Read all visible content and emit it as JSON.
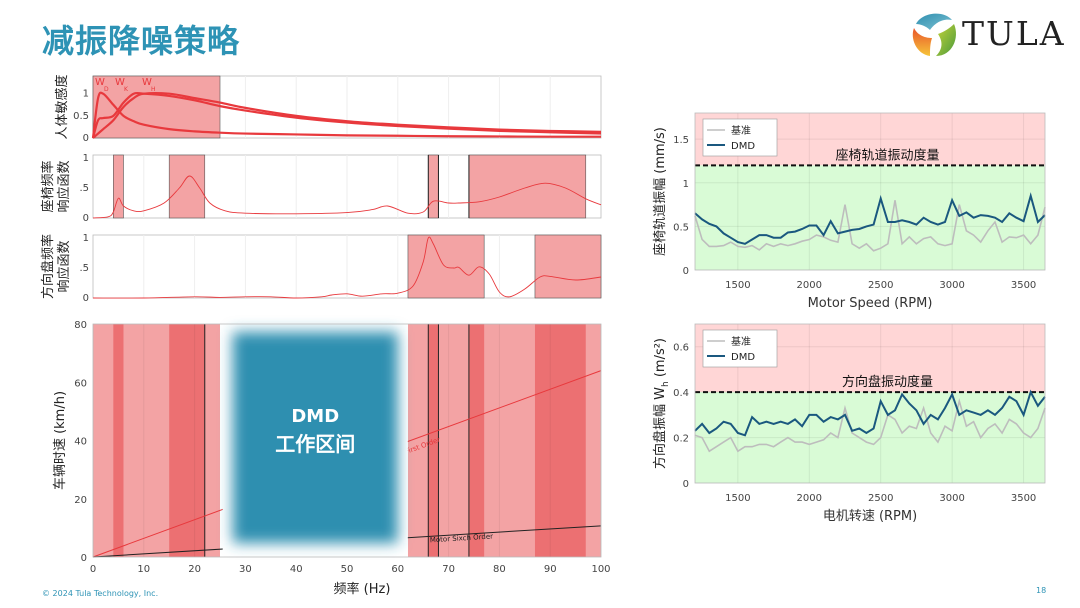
{
  "slide": {
    "title": "减振降噪策略",
    "footer": "© 2024 Tula Technology, Inc.",
    "page_number": "18",
    "logo_text": "TULA"
  },
  "colors": {
    "title": "#2e93b5",
    "band_light": "#f3a3a4",
    "band_dark": "#ec7072",
    "curve": "#e8393d",
    "dmd": "#2f8fb0",
    "dmd_line": "#1a587f",
    "baseline_line": "#bdbdbd",
    "zone_red": "#ffd6d6",
    "zone_green": "#d9fbd6"
  },
  "chart_data": [
    {
      "type": "line",
      "id": "sensitivity",
      "ylabel": "人体敏感度",
      "xlim": [
        0,
        100
      ],
      "ylim": [
        0,
        1.4
      ],
      "yticks": [
        "0",
        "0.5",
        "1"
      ],
      "ytick_values": [
        0,
        0.5,
        1
      ],
      "bands": [
        [
          0,
          25
        ]
      ],
      "x": [
        0,
        1,
        2,
        4,
        6,
        8,
        10,
        15,
        20,
        25,
        30,
        40,
        50,
        60,
        70,
        80,
        90,
        100
      ],
      "series": [
        {
          "name": "W",
          "sub": "D",
          "values": [
            0,
            0.9,
            1.0,
            0.75,
            0.5,
            0.38,
            0.3,
            0.2,
            0.15,
            0.12,
            0.1,
            0.08,
            0.06,
            0.05,
            0.04,
            0.035,
            0.03,
            0.03
          ]
        },
        {
          "name": "W",
          "sub": "K",
          "values": [
            0,
            0.4,
            0.45,
            0.5,
            0.8,
            1.0,
            1.0,
            0.95,
            0.85,
            0.72,
            0.62,
            0.46,
            0.35,
            0.27,
            0.21,
            0.16,
            0.13,
            0.1
          ]
        },
        {
          "name": "W",
          "sub": "H",
          "values": [
            0,
            0.1,
            0.2,
            0.4,
            0.7,
            0.9,
            1.0,
            1.0,
            0.9,
            0.8,
            0.68,
            0.5,
            0.38,
            0.3,
            0.24,
            0.19,
            0.16,
            0.14
          ]
        }
      ]
    },
    {
      "type": "line",
      "id": "seat-frf",
      "ylabel": [
        "座椅频率",
        "响应函数"
      ],
      "xlim": [
        0,
        100
      ],
      "ylim": [
        0,
        1.05
      ],
      "yticks": [
        "0",
        ".5",
        "1"
      ],
      "ytick_values": [
        0,
        0.5,
        1
      ],
      "bands": [
        [
          4,
          6
        ],
        [
          15,
          22
        ],
        [
          66,
          68
        ],
        [
          74,
          97
        ]
      ],
      "vlines": [
        66,
        68,
        74
      ],
      "x": [
        0,
        3,
        4,
        5,
        6,
        8,
        10,
        14,
        17,
        19,
        21,
        23,
        26,
        30,
        40,
        50,
        55,
        58,
        62,
        65,
        67,
        70,
        72,
        76,
        80,
        85,
        89,
        93,
        97,
        100
      ],
      "values": [
        0,
        0.02,
        0.1,
        0.33,
        0.2,
        0.12,
        0.12,
        0.25,
        0.5,
        0.7,
        0.5,
        0.25,
        0.12,
        0.08,
        0.07,
        0.09,
        0.14,
        0.2,
        0.08,
        0.1,
        0.28,
        0.25,
        0.25,
        0.27,
        0.35,
        0.5,
        0.58,
        0.5,
        0.32,
        0.22
      ]
    },
    {
      "type": "line",
      "id": "steering-frf",
      "ylabel": [
        "方向盘频率",
        "响应函数"
      ],
      "xlim": [
        0,
        100
      ],
      "ylim": [
        0,
        1.05
      ],
      "yticks": [
        "0",
        ".5",
        "1"
      ],
      "ytick_values": [
        0,
        0.5,
        1
      ],
      "bands": [
        [
          62,
          77
        ],
        [
          87,
          100
        ]
      ],
      "x": [
        0,
        10,
        20,
        25,
        30,
        35,
        40,
        45,
        47,
        50,
        53,
        57,
        60,
        63,
        65,
        66,
        67,
        69,
        71,
        72,
        74,
        76,
        78,
        80,
        82,
        85,
        88,
        90,
        95,
        100
      ],
      "values": [
        0,
        0,
        0.02,
        0.01,
        0.02,
        0.02,
        0,
        0.02,
        0.05,
        0.07,
        0.03,
        0.07,
        0.08,
        0.2,
        0.6,
        1.0,
        0.9,
        0.55,
        0.5,
        0.51,
        0.38,
        0.52,
        0.4,
        0.1,
        0.02,
        0.15,
        0.35,
        0.36,
        0.3,
        0.35
      ]
    },
    {
      "type": "line",
      "id": "campbell",
      "xlabel": "频率 (Hz)",
      "ylabel": "车辆时速 (km/h)",
      "xlim": [
        0,
        100
      ],
      "ylim": [
        0,
        80
      ],
      "xticks": [
        0,
        10,
        20,
        30,
        40,
        50,
        60,
        70,
        80,
        90,
        100
      ],
      "yticks": [
        0,
        20,
        40,
        60,
        80
      ],
      "light_bands": [
        [
          0,
          25
        ],
        [
          62,
          100
        ]
      ],
      "dark_bands": [
        [
          4,
          6
        ],
        [
          15,
          22
        ],
        [
          66,
          68
        ],
        [
          74,
          77
        ],
        [
          87,
          97
        ]
      ],
      "vlines": [
        22,
        66,
        68,
        74
      ],
      "dmd_region": {
        "range": [
          27.5,
          60
        ],
        "label_line1": "DMD",
        "label_line2": "工作区间"
      },
      "series": [
        {
          "name": "Motor First Order",
          "slope": 0.64
        },
        {
          "name": "Motor Sixth Order",
          "label": "Motor Sixch Order",
          "slope": 0.107
        }
      ]
    },
    {
      "type": "line",
      "id": "seat-track",
      "xlabel": "Motor Speed (RPM)",
      "ylabel": "座椅轨道振幅 (mm/s)",
      "xlim": [
        1200,
        3650
      ],
      "ylim": [
        0,
        1.8
      ],
      "xticks": [
        1500,
        2000,
        2500,
        3000,
        3500
      ],
      "yticks": [
        0,
        0.5,
        1,
        1.5
      ],
      "ytick_labels": [
        "0",
        "0.5",
        "1",
        "1.5"
      ],
      "threshold": 1.2,
      "threshold_label": "座椅轨道振动度量",
      "legend": "top-left",
      "x": [
        1200,
        1250,
        1300,
        1350,
        1400,
        1450,
        1500,
        1550,
        1600,
        1650,
        1700,
        1750,
        1800,
        1850,
        1900,
        1950,
        2000,
        2050,
        2100,
        2150,
        2200,
        2250,
        2300,
        2350,
        2400,
        2450,
        2500,
        2550,
        2600,
        2650,
        2700,
        2750,
        2800,
        2850,
        2900,
        2950,
        3000,
        3050,
        3100,
        3150,
        3200,
        3250,
        3300,
        3350,
        3400,
        3450,
        3500,
        3550,
        3600,
        3650
      ],
      "series": [
        {
          "name": "基准",
          "values": [
            0.62,
            0.35,
            0.27,
            0.27,
            0.28,
            0.32,
            0.27,
            0.26,
            0.28,
            0.23,
            0.3,
            0.27,
            0.3,
            0.28,
            0.3,
            0.33,
            0.35,
            0.4,
            0.38,
            0.34,
            0.32,
            0.75,
            0.3,
            0.25,
            0.3,
            0.22,
            0.25,
            0.3,
            0.8,
            0.3,
            0.38,
            0.3,
            0.36,
            0.38,
            0.3,
            0.28,
            0.3,
            0.75,
            0.45,
            0.4,
            0.32,
            0.45,
            0.55,
            0.32,
            0.38,
            0.37,
            0.4,
            0.3,
            0.4,
            0.72
          ]
        },
        {
          "name": "DMD",
          "values": [
            0.65,
            0.58,
            0.53,
            0.5,
            0.42,
            0.37,
            0.32,
            0.3,
            0.35,
            0.4,
            0.4,
            0.37,
            0.37,
            0.43,
            0.44,
            0.47,
            0.51,
            0.51,
            0.4,
            0.56,
            0.42,
            0.44,
            0.46,
            0.47,
            0.5,
            0.52,
            0.82,
            0.55,
            0.55,
            0.57,
            0.55,
            0.52,
            0.6,
            0.55,
            0.52,
            0.55,
            0.8,
            0.62,
            0.66,
            0.6,
            0.63,
            0.62,
            0.6,
            0.55,
            0.65,
            0.6,
            0.56,
            0.85,
            0.55,
            0.63
          ]
        }
      ]
    },
    {
      "type": "line",
      "id": "steering-wheel",
      "xlabel": "电机转速 (RPM)",
      "ylabel": "方向盘振幅 W",
      "ylabel_sub": "h",
      "ylabel_unit": "(m/s²)",
      "xlim": [
        1200,
        3650
      ],
      "ylim": [
        0,
        0.7
      ],
      "xticks": [
        1500,
        2000,
        2500,
        3000,
        3500
      ],
      "yticks": [
        0,
        0.2,
        0.4,
        0.6
      ],
      "ytick_labels": [
        "0",
        "0.2",
        "0.4",
        "0.6"
      ],
      "threshold": 0.4,
      "threshold_label": "方向盘振动度量",
      "legend": "top-left",
      "x": [
        1200,
        1250,
        1300,
        1350,
        1400,
        1450,
        1500,
        1550,
        1600,
        1650,
        1700,
        1750,
        1800,
        1850,
        1900,
        1950,
        2000,
        2050,
        2100,
        2150,
        2200,
        2250,
        2300,
        2350,
        2400,
        2450,
        2500,
        2550,
        2600,
        2650,
        2700,
        2750,
        2800,
        2850,
        2900,
        2950,
        3000,
        3050,
        3100,
        3150,
        3200,
        3250,
        3300,
        3350,
        3400,
        3450,
        3500,
        3550,
        3600,
        3650
      ],
      "series": [
        {
          "name": "基准",
          "values": [
            0.21,
            0.2,
            0.14,
            0.16,
            0.18,
            0.2,
            0.14,
            0.16,
            0.16,
            0.17,
            0.17,
            0.16,
            0.18,
            0.2,
            0.18,
            0.18,
            0.17,
            0.18,
            0.19,
            0.22,
            0.2,
            0.33,
            0.22,
            0.2,
            0.18,
            0.17,
            0.2,
            0.3,
            0.28,
            0.22,
            0.25,
            0.24,
            0.33,
            0.22,
            0.18,
            0.25,
            0.23,
            0.36,
            0.25,
            0.27,
            0.2,
            0.24,
            0.26,
            0.22,
            0.28,
            0.26,
            0.22,
            0.2,
            0.24,
            0.33
          ]
        },
        {
          "name": "DMD",
          "values": [
            0.23,
            0.26,
            0.22,
            0.24,
            0.27,
            0.26,
            0.22,
            0.21,
            0.29,
            0.26,
            0.27,
            0.26,
            0.27,
            0.26,
            0.28,
            0.25,
            0.3,
            0.3,
            0.27,
            0.29,
            0.28,
            0.3,
            0.23,
            0.24,
            0.22,
            0.24,
            0.36,
            0.3,
            0.32,
            0.39,
            0.35,
            0.32,
            0.26,
            0.3,
            0.28,
            0.33,
            0.39,
            0.3,
            0.32,
            0.31,
            0.3,
            0.32,
            0.3,
            0.33,
            0.38,
            0.36,
            0.3,
            0.4,
            0.34,
            0.38
          ]
        }
      ]
    }
  ]
}
